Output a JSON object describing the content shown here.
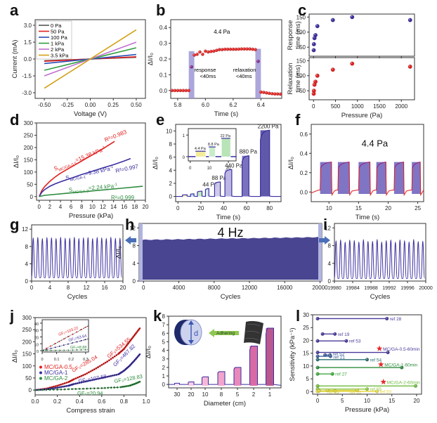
{
  "figure": {
    "panel_labels": [
      "a",
      "b",
      "c",
      "d",
      "e",
      "f",
      "g",
      "h",
      "i",
      "j",
      "k",
      "l"
    ]
  },
  "chart_data": [
    {
      "id": "a",
      "type": "line",
      "xlabel": "Voltage (V)",
      "ylabel": "Current (mA)",
      "xlim": [
        -0.6,
        0.6
      ],
      "ylim": [
        -3.5,
        3.5
      ],
      "xticks": [
        -0.5,
        -0.25,
        0.0,
        0.25,
        0.5
      ],
      "xtick_labels": [
        "-0.50",
        "-0.25",
        "0.00",
        "0.25",
        "0.50"
      ],
      "yticks": [
        -3.0,
        -1.5,
        0.0,
        1.5,
        3.0
      ],
      "ytick_labels": [
        "-3.0",
        "-1.5",
        "0.0",
        "1.5",
        "3.0"
      ],
      "legend_position": "top-left",
      "series": [
        {
          "name": "0 Pa",
          "color": "#555555",
          "x": [
            -0.5,
            0.5
          ],
          "y": [
            -0.15,
            0.15
          ]
        },
        {
          "name": "50 Pa",
          "color": "#e02020",
          "x": [
            -0.5,
            0.5
          ],
          "y": [
            -0.2,
            0.2
          ]
        },
        {
          "name": "100 Pa",
          "color": "#2a4fb5",
          "x": [
            -0.5,
            0.5
          ],
          "y": [
            -0.4,
            0.4
          ]
        },
        {
          "name": "1 kPa",
          "color": "#2e9e3e",
          "x": [
            -0.5,
            0.5
          ],
          "y": [
            -1.0,
            1.0
          ]
        },
        {
          "name": "2 kPa",
          "color": "#c070d0",
          "x": [
            -0.5,
            0.5
          ],
          "y": [
            -1.5,
            1.5
          ]
        },
        {
          "name": "3.5 kPa",
          "color": "#d4a017",
          "x": [
            -0.5,
            0.5
          ],
          "y": [
            -2.6,
            2.6
          ]
        }
      ]
    },
    {
      "id": "b",
      "type": "scatter",
      "xlabel": "Time (s)",
      "ylabel": "ΔI/I₀",
      "xlim": [
        5.75,
        6.55
      ],
      "ylim": [
        -0.05,
        0.45
      ],
      "xticks": [
        5.8,
        6.0,
        6.2,
        6.4
      ],
      "xtick_labels": [
        "5.8",
        "6.0",
        "6.2",
        "6.4"
      ],
      "yticks": [
        0.0,
        0.1,
        0.2,
        0.3,
        0.4
      ],
      "ytick_labels": [
        "0.0",
        "0.1",
        "0.2",
        "0.3",
        "0.4"
      ],
      "annotations": [
        "4.4 Pa",
        "response",
        "<40ms",
        "relaxation",
        "<40ms"
      ],
      "shaded_regions": [
        {
          "x": [
            5.88,
            5.92
          ],
          "ymax": 0.25
        },
        {
          "x": [
            6.36,
            6.4
          ],
          "ymax": 0.265
        }
      ],
      "x": [
        5.76,
        5.78,
        5.8,
        5.82,
        5.84,
        5.86,
        5.88,
        5.9,
        5.92,
        5.94,
        5.96,
        5.98,
        6.0,
        6.02,
        6.04,
        6.06,
        6.08,
        6.1,
        6.12,
        6.14,
        6.16,
        6.18,
        6.2,
        6.22,
        6.24,
        6.26,
        6.28,
        6.3,
        6.32,
        6.34,
        6.36,
        6.38,
        6.4,
        6.42,
        6.44,
        6.46,
        6.48,
        6.5,
        6.52,
        6.54
      ],
      "y": [
        0.0,
        0.0,
        0.0,
        0.0,
        0.0,
        0.0,
        0.0,
        0.15,
        0.225,
        0.23,
        0.245,
        0.23,
        0.25,
        0.245,
        0.248,
        0.25,
        0.255,
        0.26,
        0.26,
        0.262,
        0.262,
        0.262,
        0.262,
        0.262,
        0.263,
        0.264,
        0.264,
        0.264,
        0.264,
        0.262,
        0.26,
        0.185,
        -0.01,
        -0.012,
        -0.015,
        -0.018,
        -0.02,
        -0.022,
        -0.022,
        -0.023
      ]
    },
    {
      "id": "c",
      "type": "scatter",
      "xlabel": "Pressure (Pa)",
      "xlim": [
        -100,
        2300
      ],
      "xticks": [
        0,
        500,
        1000,
        1500,
        2000
      ],
      "xtick_labels": [
        "0",
        "500",
        "1000",
        "1500",
        "2000"
      ],
      "subplots": [
        {
          "ylabel": "Response time (ms)",
          "ylim": [
            20,
            160
          ],
          "yticks": [
            50,
            100,
            150
          ],
          "color": "#3b2fa0",
          "x": [
            4.4,
            8.8,
            22,
            44,
            88,
            440,
            880,
            2200
          ],
          "y": [
            40,
            60,
            80,
            90,
            120,
            140,
            150,
            140
          ]
        },
        {
          "ylabel": "Relaxation time (ms)",
          "ylim": [
            20,
            160
          ],
          "yticks": [
            50,
            100,
            150
          ],
          "color": "#e02020",
          "x": [
            4.4,
            8.8,
            22,
            44,
            88,
            440,
            880,
            2200
          ],
          "y": [
            40,
            50,
            70,
            80,
            100,
            120,
            140,
            130
          ]
        }
      ]
    },
    {
      "id": "d",
      "type": "line",
      "xlabel": "Pressure (kPa)",
      "ylabel": "ΔI/I₀",
      "xlim": [
        -0.5,
        20
      ],
      "ylim": [
        -15,
        300
      ],
      "xticks": [
        0,
        2,
        4,
        6,
        8,
        10,
        12,
        14,
        16,
        18,
        20
      ],
      "yticks": [
        0,
        50,
        100,
        150,
        200,
        250,
        300
      ],
      "series": [
        {
          "name": "S_MC/GA-0.5=15.38 kPa⁻¹",
          "r2": "R²=0.983",
          "color": "#e02020",
          "x": [
            0,
            0.5,
            1,
            2,
            3,
            4,
            6,
            8,
            10,
            12,
            14.2
          ],
          "y": [
            0,
            25,
            40,
            62,
            80,
            95,
            120,
            145,
            170,
            195,
            225
          ]
        },
        {
          "name": "S_MC/GA-1=9.38 kPa⁻¹",
          "r2": "R²=0.997",
          "color": "#3b2fa0",
          "x": [
            0,
            0.5,
            1,
            2,
            3,
            4,
            6,
            8,
            10,
            12,
            14,
            16,
            17.2
          ],
          "y": [
            0,
            18,
            28,
            42,
            52,
            60,
            75,
            90,
            103,
            117,
            130,
            145,
            155
          ]
        },
        {
          "name": "S_MC/GA-2=2.24 kPa⁻¹",
          "r2": "R²=0.999",
          "color": "#2e8b3e",
          "x": [
            0,
            1,
            5,
            10,
            15,
            19.5
          ],
          "y": [
            0,
            5,
            13,
            23,
            33,
            42
          ]
        }
      ],
      "labels": {
        "s1": "S",
        "s1_sub": "MC/GA-0.5",
        "s1_val": "=15.38 kPa",
        "s1_sup": "-1",
        "r1": "R²=0.983",
        "s2": "S",
        "s2_sub": "MC/GA-1",
        "s2_val": "=9.38 kPa",
        "s2_sup": "-1",
        "r2": "R²=0.997",
        "s3": "S",
        "s3_sub": "MC/GA-2",
        "s3_val": "=2.24 kPa",
        "s3_sup": "-1",
        "r3": "R²=0.999"
      }
    },
    {
      "id": "e",
      "type": "area",
      "xlabel": "Time (s)",
      "ylabel": "ΔI/I₀",
      "xlim": [
        -2,
        90
      ],
      "ylim": [
        -0.8,
        11
      ],
      "xticks": [
        0,
        20,
        40,
        60,
        80
      ],
      "yticks": [
        0,
        2,
        4,
        6,
        8,
        10
      ],
      "pulses": [
        {
          "t0": 4,
          "t1": 8,
          "peak": 0.25,
          "label": ""
        },
        {
          "t0": 11,
          "t1": 14,
          "peak": 0.4,
          "label": ""
        },
        {
          "t0": 17,
          "t1": 21,
          "peak": 0.8,
          "label": ""
        },
        {
          "t0": 24,
          "t1": 27,
          "peak": 1.2,
          "label": "44 Pa"
        },
        {
          "t0": 32,
          "t1": 37,
          "peak": 2.2,
          "label": "88 Pa"
        },
        {
          "t0": 41,
          "t1": 47,
          "peak": 4.1,
          "label": "440 Pa"
        },
        {
          "t0": 56,
          "t1": 62,
          "peak": 6.2,
          "label": "880 Pa"
        },
        {
          "t0": 72,
          "t1": 80,
          "peak": 10.1,
          "label": "2200 Pa"
        }
      ],
      "pulse_colors": [
        "#f3ec9a",
        "#a8ddf0",
        "#b9e8c0",
        "#cfe8f0",
        "#c9c5e8",
        "#b4aee0",
        "#6c63b8",
        "#4f47a0"
      ],
      "inset": {
        "xlim": [
          -1,
          24
        ],
        "ylim": [
          -0.2,
          1.3
        ],
        "xticks": [
          0,
          10,
          20
        ],
        "yticks": [
          0,
          1
        ],
        "pulses": [
          {
            "t0": 3,
            "t1": 8,
            "peak": 0.25,
            "label": "4.4 Pa",
            "color": "#f3ec9a"
          },
          {
            "t0": 10,
            "t1": 13,
            "peak": 0.45,
            "label": "8.8 Pa",
            "color": "#c8ecc8"
          },
          {
            "t0": 16.5,
            "t1": 21,
            "peak": 0.85,
            "label": "22 Pa",
            "color": "#b8e4b8"
          }
        ]
      }
    },
    {
      "id": "f",
      "type": "line",
      "xlabel": "Time (s)",
      "ylabel": "ΔI/I₀",
      "xlim": [
        7,
        26
      ],
      "ylim": [
        -0.1,
        0.7
      ],
      "xticks": [
        10,
        15,
        20,
        25
      ],
      "yticks": [
        0.0,
        0.2,
        0.4,
        0.6
      ],
      "ytick_labels": [
        "0.0",
        "0.2",
        "0.4",
        "0.6"
      ],
      "annotation": "4.4 Pa",
      "pulses": [
        [
          8.5,
          10.5
        ],
        [
          11.5,
          13.5
        ],
        [
          15,
          17
        ],
        [
          18,
          19.7
        ],
        [
          21,
          22.7
        ],
        [
          24,
          25.5
        ]
      ],
      "pulse_peak": 0.31,
      "baseline": 0.02
    },
    {
      "id": "g",
      "type": "line",
      "xlabel": "Cycles",
      "ylabel": "",
      "xlim": [
        0,
        20
      ],
      "ylim": [
        0,
        13
      ],
      "xticks": [
        0,
        4,
        8,
        12,
        16,
        20
      ],
      "yticks": [
        0,
        4,
        8,
        12
      ],
      "cycles": 20,
      "peak": 10,
      "trough": 0.8,
      "color": "#3b2fa0"
    },
    {
      "id": "h",
      "type": "area",
      "xlabel": "Cycles",
      "ylabel": "ΔI/I₀",
      "xlim": [
        -500,
        20200
      ],
      "ylim": [
        0,
        13
      ],
      "xticks": [
        0,
        4000,
        8000,
        12000,
        16000,
        20000
      ],
      "yticks": [
        0,
        4,
        8,
        12
      ],
      "annotation": "4 Hz",
      "level_start": 9.3,
      "level_end": 9.9,
      "color": "#4a4590"
    },
    {
      "id": "i",
      "type": "line",
      "xlabel": "Cycles",
      "ylabel": "",
      "xlim": [
        19980,
        20000
      ],
      "ylim": [
        0,
        13
      ],
      "xticks": [
        19980,
        19984,
        19988,
        19992,
        19996,
        20000
      ],
      "yticks": [
        0,
        4,
        8,
        12
      ],
      "cycles": 20,
      "peak": 9.1,
      "trough": 0.6,
      "color": "#3b2fa0"
    },
    {
      "id": "j",
      "type": "scatter",
      "xlabel": "Compress strain",
      "ylabel": "ΔI/I₀",
      "xlim": [
        0,
        1.0
      ],
      "ylim": [
        -20,
        300
      ],
      "xticks": [
        0.0,
        0.2,
        0.4,
        0.6,
        0.8,
        1.0
      ],
      "xtick_labels": [
        "0.0",
        "0.2",
        "0.4",
        "0.6",
        "0.8",
        "1.0"
      ],
      "yticks": [
        0,
        50,
        100,
        150,
        200,
        250,
        300
      ],
      "legend_position": "center-left",
      "series": [
        {
          "name": "MC/GA-0.5",
          "color": "#e02020",
          "x": [
            0,
            0.1,
            0.2,
            0.3,
            0.35,
            0.45,
            0.55,
            0.65,
            0.75,
            0.8,
            0.85,
            0.9,
            0.95
          ],
          "y": [
            0,
            6,
            18,
            33,
            45,
            65,
            90,
            118,
            150,
            170,
            200,
            230,
            260
          ]
        },
        {
          "name": "MC/GA-1",
          "color": "#3b2fa0",
          "x": [
            0,
            0.1,
            0.2,
            0.3,
            0.35,
            0.45,
            0.55,
            0.65,
            0.75,
            0.8,
            0.85,
            0.9,
            0.95
          ],
          "y": [
            0,
            3,
            10,
            18,
            25,
            35,
            45,
            55,
            65,
            80,
            100,
            125,
            152
          ]
        },
        {
          "name": "MC/GA-2",
          "color": "#2e8b3e",
          "x": [
            0,
            0.2,
            0.4,
            0.6,
            0.77,
            0.85,
            0.9,
            0.95
          ],
          "y": [
            0,
            2,
            5,
            8,
            12,
            18,
            26,
            36
          ]
        }
      ],
      "labels": [
        "GF₂=285.04",
        "GF₃=534.55",
        "GF₂=107.58",
        "GF₃=467.82",
        "GF₃=128.83",
        "GF₂=20.94"
      ],
      "inset": {
        "xlim": [
          0,
          0.32
        ],
        "ylim": [
          -2,
          45
        ],
        "xticks": [
          0.0,
          0.1,
          0.2,
          0.3
        ],
        "yticks": [
          0,
          10,
          20,
          30,
          40
        ],
        "labels": [
          "GF₁=103.22",
          "GF₁=53.64",
          "GF₁=8.88"
        ],
        "slopes": [
          103.22,
          53.64,
          8.88
        ]
      }
    },
    {
      "id": "k",
      "type": "area",
      "xlabel": "Diameter (cm)",
      "ylabel": "ΔI/I₀",
      "ylim": [
        -0.4,
        8
      ],
      "yticks": [
        0,
        1,
        2,
        3,
        4,
        5,
        6,
        7,
        8
      ],
      "categories": [
        "30",
        "20",
        "10",
        "8",
        "5",
        "2",
        "1"
      ],
      "values": [
        0.15,
        0.3,
        0.9,
        1.5,
        2.0,
        4.5,
        6.6
      ],
      "colors": [
        "#fbe0ee",
        "#f8cde3",
        "#f6b8d8",
        "#f2a4cd",
        "#e889bb",
        "#d86ba6",
        "#b9578f"
      ],
      "annotation": "Adhering",
      "diagram_label": "d"
    },
    {
      "id": "l",
      "type": "line",
      "xlabel": "Pressure (kPa)",
      "ylabel": "Sensitivity (kPa⁻¹)",
      "xlim": [
        -1,
        21
      ],
      "ylim": [
        -1,
        30
      ],
      "xticks": [
        0,
        5,
        10,
        15,
        20
      ],
      "yticks": [
        0,
        5,
        10,
        15,
        20,
        25,
        30
      ],
      "ranges": [
        {
          "label": "ref 28",
          "y": 28.5,
          "x0": 0,
          "x1": 14,
          "color": "#4a3a9a"
        },
        {
          "label": "ref 19",
          "y": 22.5,
          "x0": 1,
          "x1": 3.5,
          "color": "#4a3a9a"
        },
        {
          "label": "ref 53",
          "y": 19.8,
          "x0": 0,
          "x1": 5.8,
          "color": "#4a3a9a"
        },
        {
          "label": "",
          "y": 15.3,
          "x0": 0,
          "x1": 14.2,
          "color": "#4a3a9a"
        },
        {
          "label": "ref 52",
          "y": 14.3,
          "x0": 1.5,
          "x1": 2.5,
          "color": "#3e5f9a"
        },
        {
          "label": "ref 21",
          "y": 13.8,
          "x0": 0,
          "x1": 2.6,
          "color": "#3e5f9a"
        },
        {
          "label": "ref 54",
          "y": 12.5,
          "x0": 0,
          "x1": 10,
          "color": "#2e6f70"
        },
        {
          "label": "",
          "y": 9.4,
          "x0": 0,
          "x1": 17,
          "color": "#2e8b3e"
        },
        {
          "label": "ref 27",
          "y": 6.9,
          "x0": 0,
          "x1": 3,
          "color": "#3eaa3e"
        },
        {
          "label": "",
          "y": 2.2,
          "x0": 0,
          "x1": 19.8,
          "color": "#6dbb3e"
        },
        {
          "label": "ref 55",
          "y": 1.0,
          "x0": 0,
          "x1": 10,
          "color": "#8cc63e"
        },
        {
          "label": "ref 50",
          "y": 0.1,
          "x0": 0,
          "x1": 12,
          "color": "#e8d840"
        },
        {
          "label": "ref 49",
          "y": 0.3,
          "x0": 0.3,
          "x1": 3.5,
          "color": "#d8d040"
        },
        {
          "label": "ref 51",
          "y": 0.5,
          "x0": 2,
          "x1": 8,
          "color": "#d8d040"
        }
      ],
      "stars": [
        {
          "label": "MC/GA-0.5-60min",
          "x": 12.5,
          "y": 16.8
        },
        {
          "label": "MC/GA-1-60min",
          "x": 12.8,
          "y": 10.6
        },
        {
          "label": "MC/GA-2-60min",
          "x": 13.3,
          "y": 3.8
        }
      ]
    }
  ]
}
